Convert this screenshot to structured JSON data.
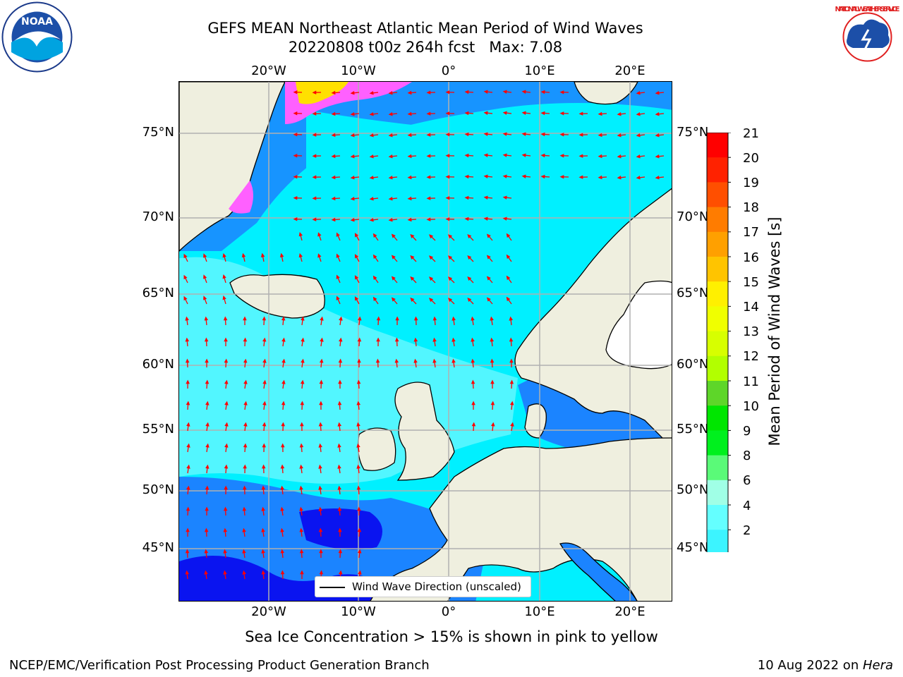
{
  "header": {
    "title_line1": "GEFS MEAN Northeast Atlantic Mean Period of Wind Waves",
    "title_line2": "20220808 t00z 264h fcst   Max: 7.08"
  },
  "logos": {
    "left": "NOAA",
    "left_ring": "NATIONAL OCEANIC AND ATMOSPHERIC ADMINISTRATION · U.S. DEPARTMENT OF COMMERCE",
    "right_ring": "NATIONAL WEATHER SERVICE"
  },
  "map": {
    "lon_ticks": [
      "20°W",
      "10°W",
      "0°",
      "10°E",
      "20°E"
    ],
    "lat_ticks": [
      "75°N",
      "70°N",
      "65°N",
      "60°N",
      "55°N",
      "50°N",
      "45°N"
    ],
    "legend_label": "Wind Wave Direction (unscaled)",
    "land_color": "#efefdf",
    "vector_color": "#ff0000"
  },
  "colorbar": {
    "label": "Mean Period of Wind Waves [s]",
    "ticks": [
      "21",
      "20",
      "19",
      "18",
      "17",
      "16",
      "15",
      "14",
      "13",
      "12",
      "11",
      "10",
      "9",
      "8",
      "6",
      "4",
      "2"
    ],
    "colors": [
      "#ff0000",
      "#ff2200",
      "#ff4f00",
      "#ff7c00",
      "#ffa000",
      "#ffc400",
      "#fff000",
      "#f0ff00",
      "#d7ff00",
      "#b2ff00",
      "#5ed629",
      "#00e600",
      "#00f01e",
      "#5afa78",
      "#a0ffe6",
      "#64ffff",
      "#3cf4ff",
      "#00e6ff",
      "#0064ff"
    ],
    "extend_color": "#0000f0"
  },
  "notes": {
    "ice": "Sea Ice Concentration > 15% is shown in pink to yellow"
  },
  "footer": {
    "left": "NCEP/EMC/Verification Post Processing Product Generation Branch",
    "date": "10 Aug 2022 on ",
    "machine": "Hera"
  }
}
